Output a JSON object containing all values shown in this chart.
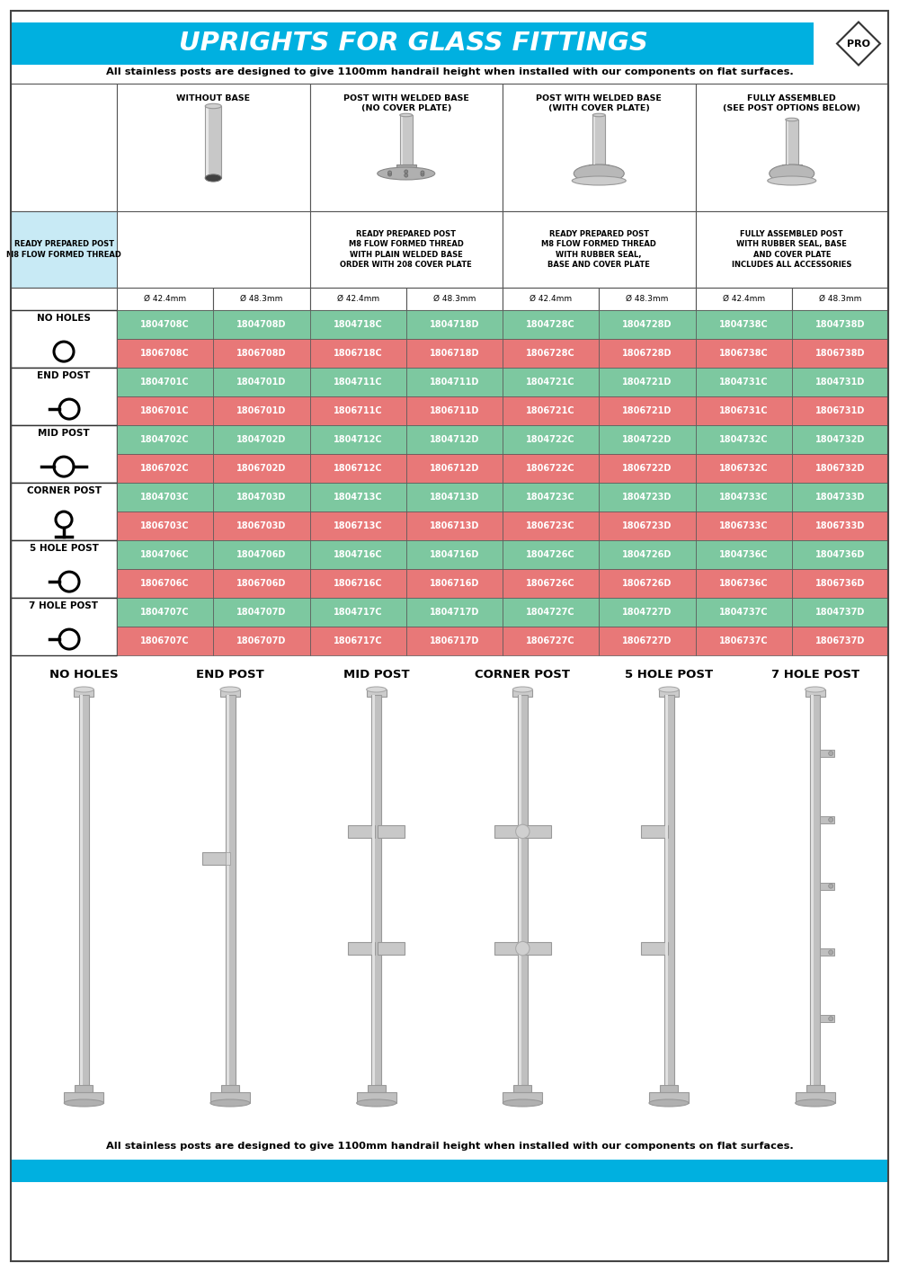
{
  "title": "UPRIGHTS FOR GLASS FITTINGS",
  "subtitle": "All stainless posts are designed to give 1100mm handrail height when installed with our components on flat surfaces.",
  "title_bg": "#00b0e0",
  "col_headers": [
    "WITHOUT BASE",
    "POST WITH WELDED BASE\n(NO COVER PLATE)",
    "POST WITH WELDED BASE\n(WITH COVER PLATE)",
    "FULLY ASSEMBLED\n(SEE POST OPTIONS BELOW)"
  ],
  "col_desc": [
    "READY PREPARED POST\nM8 FLOW FORMED THREAD",
    "READY PREPARED POST\nM8 FLOW FORMED THREAD\nWITH PLAIN WELDED BASE\nORDER WITH 208 COVER PLATE",
    "READY PREPARED POST\nM8 FLOW FORMED THREAD\nWITH RUBBER SEAL,\nBASE AND COVER PLATE",
    "FULLY ASSEMBLED POST\nWITH RUBBER SEAL, BASE\nAND COVER PLATE\nINCLUDES ALL ACCESSORIES"
  ],
  "diameter_headers": [
    "Ø 42.4mm",
    "Ø 48.3mm",
    "Ø 42.4mm",
    "Ø 48.3mm",
    "Ø 42.4mm",
    "Ø 48.3mm",
    "Ø 42.4mm",
    "Ø 48.3mm"
  ],
  "rows": [
    {
      "type": "NO HOLES",
      "green_row": [
        "1804708C",
        "1804708D",
        "1804718C",
        "1804718D",
        "1804728C",
        "1804728D",
        "1804738C",
        "1804738D"
      ],
      "red_row": [
        "1806708C",
        "1806708D",
        "1806718C",
        "1806718D",
        "1806728C",
        "1806728D",
        "1806738C",
        "1806738D"
      ]
    },
    {
      "type": "END POST",
      "green_row": [
        "1804701C",
        "1804701D",
        "1804711C",
        "1804711D",
        "1804721C",
        "1804721D",
        "1804731C",
        "1804731D"
      ],
      "red_row": [
        "1806701C",
        "1806701D",
        "1806711C",
        "1806711D",
        "1806721C",
        "1806721D",
        "1806731C",
        "1806731D"
      ]
    },
    {
      "type": "MID POST",
      "green_row": [
        "1804702C",
        "1804702D",
        "1804712C",
        "1804712D",
        "1804722C",
        "1804722D",
        "1804732C",
        "1804732D"
      ],
      "red_row": [
        "1806702C",
        "1806702D",
        "1806712C",
        "1806712D",
        "1806722C",
        "1806722D",
        "1806732C",
        "1806732D"
      ]
    },
    {
      "type": "CORNER POST",
      "green_row": [
        "1804703C",
        "1804703D",
        "1804713C",
        "1804713D",
        "1804723C",
        "1804723D",
        "1804733C",
        "1804733D"
      ],
      "red_row": [
        "1806703C",
        "1806703D",
        "1806713C",
        "1806713D",
        "1806723C",
        "1806723D",
        "1806733C",
        "1806733D"
      ]
    },
    {
      "type": "5 HOLE POST",
      "green_row": [
        "1804706C",
        "1804706D",
        "1804716C",
        "1804716D",
        "1804726C",
        "1804726D",
        "1804736C",
        "1804736D"
      ],
      "red_row": [
        "1806706C",
        "1806706D",
        "1806716C",
        "1806716D",
        "1806726C",
        "1806726D",
        "1806736C",
        "1806736D"
      ]
    },
    {
      "type": "7 HOLE POST",
      "green_row": [
        "1804707C",
        "1804707D",
        "1804717C",
        "1804717D",
        "1804727C",
        "1804727D",
        "1804737C",
        "1804737D"
      ],
      "red_row": [
        "1806707C",
        "1806707D",
        "1806717C",
        "1806717D",
        "1806727C",
        "1806727D",
        "1806737C",
        "1806737D"
      ]
    }
  ],
  "green_color": "#7dc8a0",
  "red_color": "#e87878",
  "light_blue": "#c8eaf5",
  "bottom_labels": [
    "NO HOLES",
    "END POST",
    "MID POST",
    "CORNER POST",
    "5 HOLE POST",
    "7 HOLE POST"
  ],
  "footer": "All stainless posts are designed to give 1100mm handrail height when installed with our components on flat surfaces."
}
